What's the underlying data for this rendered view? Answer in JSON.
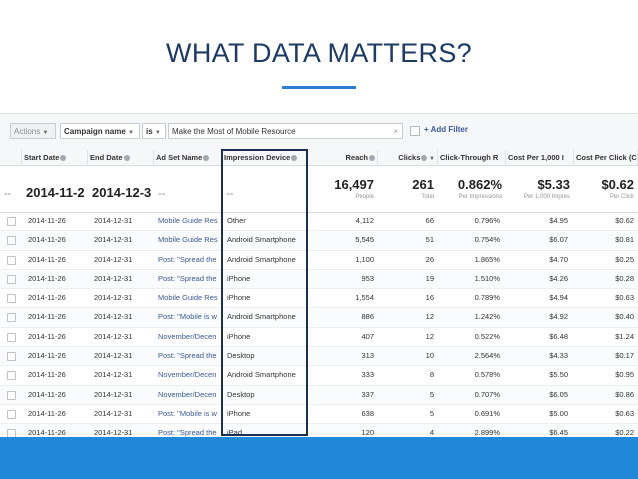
{
  "slide": {
    "title": "WHAT DATA MATTERS?"
  },
  "filter_bar": {
    "actions_label": "Actions",
    "campaign_field": "Campaign name",
    "operator": "is",
    "value": "Make the Most of Mobile Resource",
    "add_filter_label": "+ Add Filter"
  },
  "columns": {
    "start_date": "Start Date",
    "end_date": "End Date",
    "ad_set_name": "Ad Set Name",
    "impression_device": "Impression Device",
    "reach": "Reach",
    "clicks": "Clicks",
    "ctr": "Click-Through R",
    "cpm": "Cost Per 1,000 I",
    "cpc": "Cost Per Click (C"
  },
  "totals": {
    "start_date": "2014-11-2",
    "end_date": "2014-12-3",
    "ad_set_dash": "--",
    "device_dash": "--",
    "row_dash": "--",
    "reach": "16,497",
    "reach_sub": "People",
    "clicks": "261",
    "clicks_sub": "Total",
    "ctr": "0.862%",
    "ctr_sub": "Per Impressions",
    "cpm": "$5.33",
    "cpm_sub": "Per 1,000 Impres",
    "cpc": "$0.62",
    "cpc_sub": "Per Click"
  },
  "rows": [
    {
      "start": "2014-11-26",
      "end": "2014-12-31",
      "ad_set": "Mobile Guide Res",
      "device": "Other",
      "reach": "4,112",
      "clicks": "66",
      "ctr": "0.796%",
      "cpm": "$4.95",
      "cpc": "$0.62"
    },
    {
      "start": "2014-11-26",
      "end": "2014-12-31",
      "ad_set": "Mobile Guide Res",
      "device": "Android Smartphone",
      "reach": "5,545",
      "clicks": "51",
      "ctr": "0.754%",
      "cpm": "$6.07",
      "cpc": "$0.81"
    },
    {
      "start": "2014-11-26",
      "end": "2014-12-31",
      "ad_set": "Post: \"Spread the",
      "device": "Android Smartphone",
      "reach": "1,100",
      "clicks": "26",
      "ctr": "1.865%",
      "cpm": "$4.70",
      "cpc": "$0.25"
    },
    {
      "start": "2014-11-26",
      "end": "2014-12-31",
      "ad_set": "Post: \"Spread the",
      "device": "iPhone",
      "reach": "953",
      "clicks": "19",
      "ctr": "1.510%",
      "cpm": "$4.26",
      "cpc": "$0.28"
    },
    {
      "start": "2014-11-26",
      "end": "2014-12-31",
      "ad_set": "Mobile Guide Res",
      "device": "iPhone",
      "reach": "1,554",
      "clicks": "16",
      "ctr": "0.789%",
      "cpm": "$4.94",
      "cpc": "$0.63"
    },
    {
      "start": "2014-11-26",
      "end": "2014-12-31",
      "ad_set": "Post: \"Mobile is w",
      "device": "Android Smartphone",
      "reach": "886",
      "clicks": "12",
      "ctr": "1.242%",
      "cpm": "$4.92",
      "cpc": "$0.40"
    },
    {
      "start": "2014-11-26",
      "end": "2014-12-31",
      "ad_set": "November/Decen",
      "device": "iPhone",
      "reach": "407",
      "clicks": "12",
      "ctr": "0.522%",
      "cpm": "$6.48",
      "cpc": "$1.24"
    },
    {
      "start": "2014-11-26",
      "end": "2014-12-31",
      "ad_set": "Post: \"Spread the",
      "device": "Desktop",
      "reach": "313",
      "clicks": "10",
      "ctr": "2.564%",
      "cpm": "$4.33",
      "cpc": "$0.17"
    },
    {
      "start": "2014-11-26",
      "end": "2014-12-31",
      "ad_set": "November/Decen",
      "device": "Android Smartphone",
      "reach": "333",
      "clicks": "8",
      "ctr": "0.578%",
      "cpm": "$5.50",
      "cpc": "$0.95"
    },
    {
      "start": "2014-11-26",
      "end": "2014-12-31",
      "ad_set": "November/Decen",
      "device": "Desktop",
      "reach": "337",
      "clicks": "5",
      "ctr": "0.707%",
      "cpm": "$6.05",
      "cpc": "$0.86"
    },
    {
      "start": "2014-11-26",
      "end": "2014-12-31",
      "ad_set": "Post: \"Mobile is w",
      "device": "iPhone",
      "reach": "638",
      "clicks": "5",
      "ctr": "0.691%",
      "cpm": "$5.00",
      "cpc": "$0.63"
    },
    {
      "start": "2014-11-26",
      "end": "2014-12-31",
      "ad_set": "Post: \"Spread the",
      "device": "iPad",
      "reach": "120",
      "clicks": "4",
      "ctr": "2.899%",
      "cpm": "$6.45",
      "cpc": "$0.22"
    }
  ],
  "colors": {
    "title": "#1c3a66",
    "accent_underline": "#2a7fd4",
    "bottom_band": "#1f88d9",
    "highlight_border": "#1c2e52",
    "link": "#3b5998"
  },
  "icons": [
    "info-icon",
    "dropdown-caret-icon",
    "checkbox-icon",
    "clear-x-icon"
  ]
}
